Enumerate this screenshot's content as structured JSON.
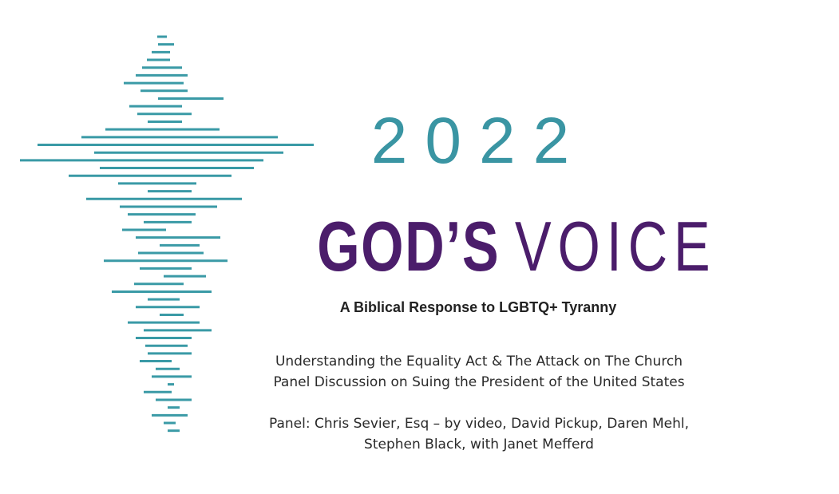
{
  "header": {
    "year": "2022",
    "title_bold": "GOD’S",
    "title_light": "VOICE",
    "tagline": "A Biblical Response to LGBTQ+ Tyranny"
  },
  "body": {
    "lines": [
      "Understanding the Equality Act & The Attack on The Church",
      "Panel Discussion on Suing the President of the United States"
    ],
    "panel": [
      "Panel: Chris Sevier, Esq – by video, David Pickup, Daren Mehl,",
      "Stephen Black, with Janet Mefferd"
    ]
  }
}
